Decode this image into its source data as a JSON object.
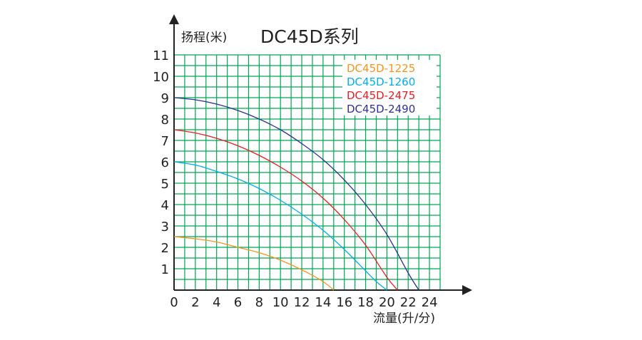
{
  "chart_data": {
    "type": "line",
    "title": "DC45D系列",
    "xlabel": "流量(升/分)",
    "ylabel": "扬程(米)",
    "xlim": [
      0,
      25
    ],
    "ylim": [
      0,
      11
    ],
    "x_ticks": [
      0,
      2,
      4,
      6,
      8,
      10,
      12,
      14,
      16,
      18,
      20,
      22,
      24
    ],
    "y_ticks": [
      1,
      2,
      3,
      4,
      5,
      6,
      7,
      8,
      9,
      10,
      11
    ],
    "grid": true,
    "grid_color": "#00a651",
    "legend_position": "top-right",
    "series": [
      {
        "name": "DC45D-1225",
        "color": "#f7941d",
        "x": [
          0,
          2,
          4,
          6,
          8,
          10,
          12,
          14,
          15
        ],
        "y": [
          2.5,
          2.4,
          2.25,
          2.0,
          1.75,
          1.4,
          0.95,
          0.4,
          0
        ]
      },
      {
        "name": "DC45D-1260",
        "color": "#00aeef",
        "x": [
          0,
          2,
          4,
          6,
          8,
          10,
          12,
          14,
          16,
          18,
          19,
          20
        ],
        "y": [
          6.0,
          5.85,
          5.55,
          5.2,
          4.75,
          4.2,
          3.55,
          2.8,
          1.9,
          0.9,
          0.4,
          0
        ]
      },
      {
        "name": "DC45D-2475",
        "color": "#ed1c24",
        "x": [
          0,
          2,
          4,
          6,
          8,
          10,
          12,
          14,
          16,
          18,
          20,
          21
        ],
        "y": [
          7.5,
          7.35,
          7.1,
          6.75,
          6.3,
          5.75,
          5.1,
          4.3,
          3.3,
          2.1,
          0.6,
          0
        ]
      },
      {
        "name": "DC45D-2490",
        "color": "#2e3192",
        "x": [
          0,
          2,
          4,
          6,
          8,
          10,
          12,
          14,
          16,
          18,
          20,
          22,
          23
        ],
        "y": [
          9.0,
          8.9,
          8.7,
          8.4,
          8.0,
          7.5,
          6.85,
          6.1,
          5.15,
          4.0,
          2.6,
          0.8,
          0
        ]
      }
    ]
  }
}
